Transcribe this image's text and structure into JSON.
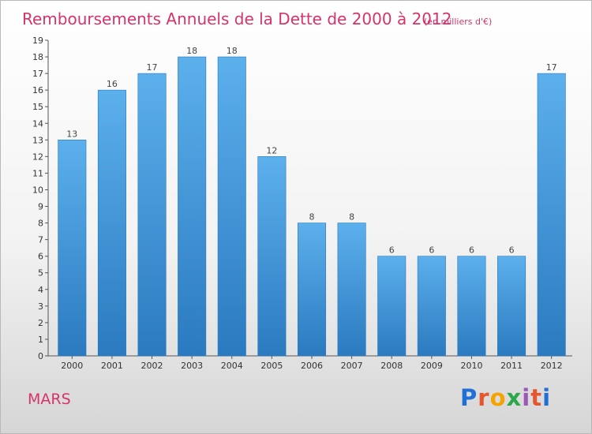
{
  "chart_data": {
    "type": "bar",
    "title": "Remboursements Annuels de la Dette de 2000 à 2012",
    "subtitle": "(en milliers d'€)",
    "categories": [
      "2000",
      "2001",
      "2002",
      "2003",
      "2004",
      "2005",
      "2006",
      "2007",
      "2008",
      "2009",
      "2010",
      "2011",
      "2012"
    ],
    "values": [
      13,
      16,
      17,
      18,
      18,
      12,
      8,
      8,
      6,
      6,
      6,
      6,
      17
    ],
    "ylim": [
      0,
      19
    ],
    "yticks": [
      0,
      1,
      2,
      3,
      4,
      5,
      6,
      7,
      8,
      9,
      10,
      11,
      12,
      13,
      14,
      15,
      16,
      17,
      18,
      19
    ],
    "grid": false,
    "bar_color": "#4d9fe0"
  },
  "footer": {
    "commune": "MARS",
    "logo_text": "Proxiti"
  }
}
